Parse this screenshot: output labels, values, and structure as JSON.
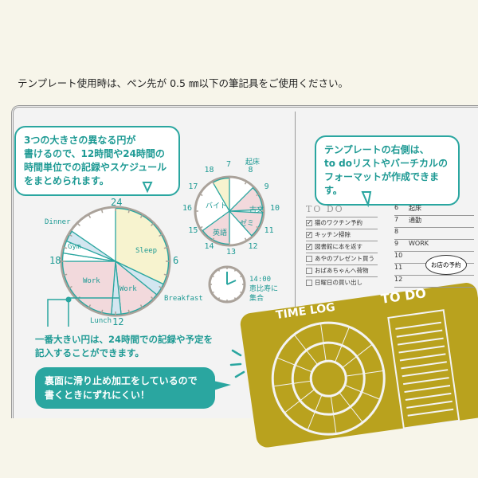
{
  "notice": "テンプレート使用時は、ペン先が 0.5 ㎜以下の筆記具をご使用ください。",
  "bubble_left": [
    "3つの大きさの異なる円が",
    "書けるので、12時間や24時間の",
    "時間単位での記録やスケジュール",
    "をまとめられます。"
  ],
  "bubble_right": [
    "テンプレートの右側は、",
    "to doリストやバーチカルの",
    "フォーマットが作成できます。"
  ],
  "note": [
    "一番大きい円は、24時間での記録や予定を",
    "記入することができます。"
  ],
  "bubble_bottom": [
    "裏面に滑り止め加工をしているので",
    "書くときにずれにくい！"
  ],
  "big_clock": {
    "ticks": [
      "24",
      "6",
      "12",
      "18"
    ],
    "labels": {
      "sleep": "Sleep",
      "breakfast": "Breakfast",
      "work1": "Work",
      "lunch": "Lunch",
      "work2": "Work",
      "gym": "Gym",
      "dinner": "Dinner"
    }
  },
  "small_clock": {
    "numbers": [
      "7",
      "8",
      "9",
      "10",
      "11",
      "12",
      "13",
      "14",
      "15",
      "16",
      "17",
      "18"
    ],
    "labels": {
      "wake": "起床",
      "kobun": "古文",
      "zemi": "ゼミ",
      "eigo": "英語",
      "baito": "バイト"
    }
  },
  "analog_note": [
    "14:00",
    "恵比寿に",
    "集合"
  ],
  "todo": {
    "title": "TO DO",
    "items": [
      {
        "text": "猫のワクチン予約",
        "done": true
      },
      {
        "text": "キッチン掃除",
        "done": true
      },
      {
        "text": "図書館に本を返す",
        "done": true
      },
      {
        "text": "あやのプレゼント買う",
        "done": false
      },
      {
        "text": "おばあちゃんへ荷物",
        "done": false
      },
      {
        "text": "日曜日の買い出し",
        "done": false
      }
    ]
  },
  "schedule": {
    "rows": [
      {
        "h": "6",
        "t": "起床"
      },
      {
        "h": "7",
        "t": "通勤"
      },
      {
        "h": "8",
        "t": ""
      },
      {
        "h": "9",
        "t": "WORK"
      },
      {
        "h": "10",
        "t": ""
      },
      {
        "h": "11",
        "t": ""
      },
      {
        "h": "12",
        "t": ""
      }
    ],
    "callout": "お店の予約"
  },
  "template": {
    "left_label": "TIME LOG",
    "right_label": "TO DO",
    "color": "#b9a21e"
  },
  "colors": {
    "teal": "#2aa6a0",
    "yellow": "#f7f3cf",
    "pink": "#f2d9dc",
    "blue": "#d3e6f0"
  }
}
